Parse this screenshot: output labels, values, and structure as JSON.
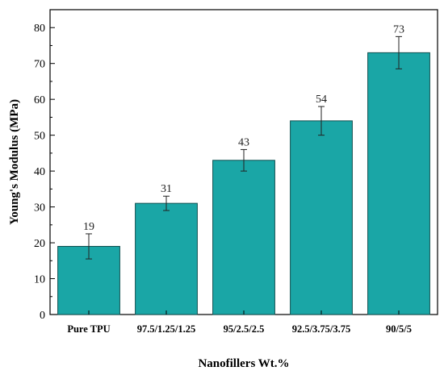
{
  "chart_data": {
    "type": "bar",
    "categories": [
      "Pure TPU",
      "97.5/1.25/1.25",
      "95/2.5/2.5",
      "92.5/3.75/3.75",
      "90/5/5"
    ],
    "values": [
      19,
      31,
      43,
      54,
      73
    ],
    "error": [
      3.5,
      2,
      3,
      4,
      4.5
    ],
    "data_labels": [
      "19",
      "31",
      "43",
      "54",
      "73"
    ],
    "xlabel": "Nanofillers Wt.%",
    "ylabel": "Young's Modulus (MPa)",
    "ylim": [
      0,
      85
    ],
    "yticks": [
      0,
      10,
      20,
      30,
      40,
      50,
      60,
      70,
      80
    ],
    "bar_color": "#1aa6a6",
    "bar_edge_color": "#0f4f4f",
    "grid": false,
    "legend": "none"
  }
}
